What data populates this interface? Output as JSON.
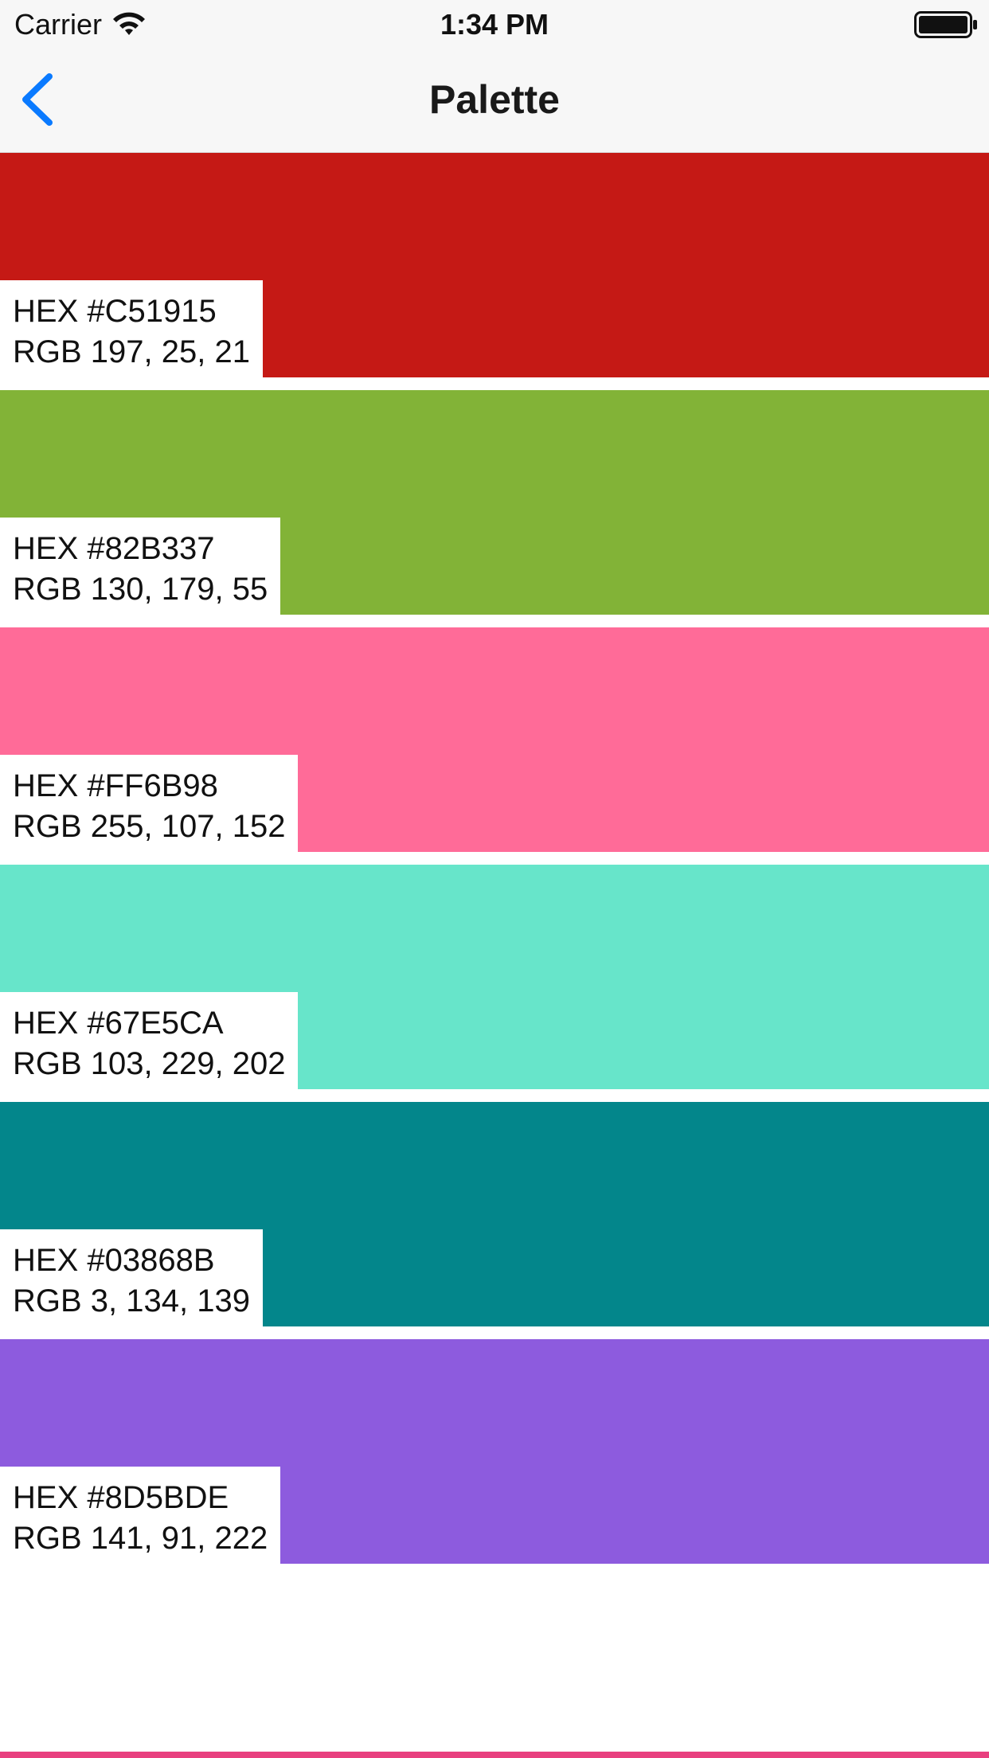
{
  "status_bar": {
    "carrier": "Carrier",
    "time": "1:34 PM"
  },
  "nav": {
    "title": "Palette",
    "back_icon": "chevron-left-icon",
    "accent": "#0a7aff"
  },
  "swatches": [
    {
      "hex_label": "HEX #C51915",
      "rgb_label": "RGB 197, 25, 21",
      "color": "#C51915"
    },
    {
      "hex_label": "HEX #82B337",
      "rgb_label": "RGB 130, 179, 55",
      "color": "#82B337"
    },
    {
      "hex_label": "HEX #FF6B98",
      "rgb_label": "RGB 255, 107, 152",
      "color": "#FF6B98"
    },
    {
      "hex_label": "HEX #67E5CA",
      "rgb_label": "RGB 103, 229, 202",
      "color": "#67E5CA"
    },
    {
      "hex_label": "HEX #03868B",
      "rgb_label": "RGB 3, 134, 139",
      "color": "#03868B"
    },
    {
      "hex_label": "HEX #8D5BDE",
      "rgb_label": "RGB 141, 91, 222",
      "color": "#8D5BDE"
    }
  ],
  "next_swatch_color": "#E8407F"
}
